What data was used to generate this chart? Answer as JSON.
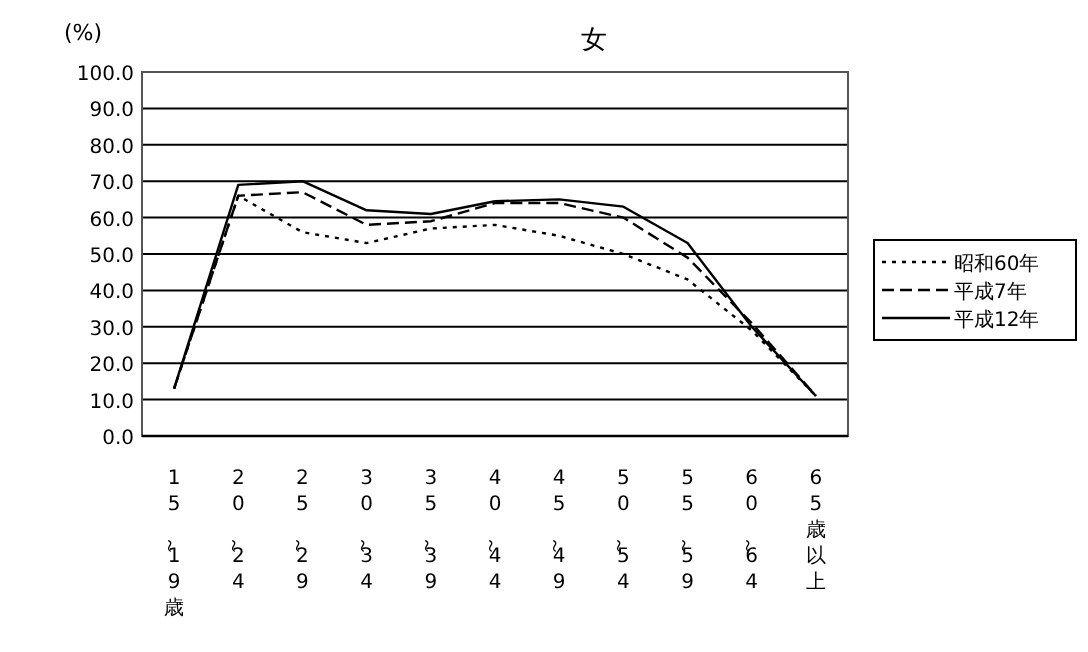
{
  "chart_data": {
    "type": "line",
    "title": "女",
    "ylabel": "(%)",
    "categories": [
      "15～19歳",
      "20～24",
      "25～29",
      "30～34",
      "35～39",
      "40～44",
      "45～49",
      "50～54",
      "55～59",
      "60～64",
      "65歳以上"
    ],
    "ylim": [
      0,
      100
    ],
    "yticks": [
      {
        "value": 0,
        "label": "0.0"
      },
      {
        "value": 10,
        "label": "10.0"
      },
      {
        "value": 20,
        "label": "20.0"
      },
      {
        "value": 30,
        "label": "30.0"
      },
      {
        "value": 40,
        "label": "40.0"
      },
      {
        "value": 50,
        "label": "50.0"
      },
      {
        "value": 60,
        "label": "60.0"
      },
      {
        "value": 70,
        "label": "70.0"
      },
      {
        "value": 80,
        "label": "80.0"
      },
      {
        "value": 90,
        "label": "90.0"
      },
      {
        "value": 100,
        "label": "100.0"
      }
    ],
    "grid": "y",
    "legend": "right",
    "marker": "none",
    "series": [
      {
        "name": "昭和60年",
        "color": "#000000",
        "line_style": "dotted",
        "values": [
          13,
          66,
          56,
          53,
          57,
          58,
          55,
          50,
          43,
          29,
          11
        ]
      },
      {
        "name": "平成7年",
        "color": "#000000",
        "line_style": "dashed",
        "values": [
          13,
          66,
          67,
          58,
          59,
          64,
          64,
          60,
          49,
          31,
          11
        ]
      },
      {
        "name": "平成12年",
        "color": "#000000",
        "line_style": "solid",
        "values": [
          13,
          69,
          70,
          62,
          61,
          64.5,
          65,
          63,
          53,
          30,
          11
        ]
      }
    ]
  }
}
